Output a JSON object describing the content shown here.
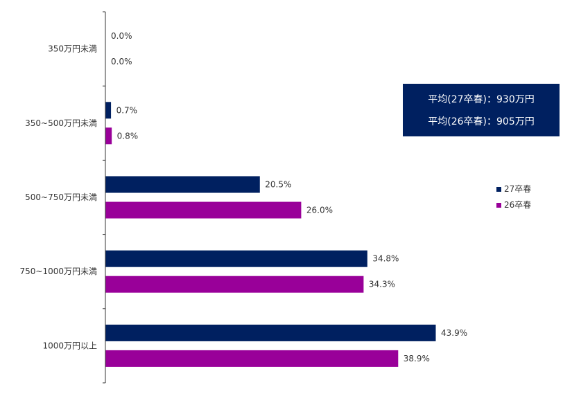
{
  "chart_data": {
    "type": "bar",
    "orientation": "horizontal",
    "categories": [
      "350万円未満",
      "350~500万円未満",
      "500~750万円未満",
      "750~1000万円未満",
      "1000万円以上"
    ],
    "series": [
      {
        "name": "27卒春",
        "color": "#002060",
        "values": [
          0.0,
          0.7,
          20.5,
          34.8,
          43.9
        ],
        "labels": [
          "0.0%",
          "0.7%",
          "20.5%",
          "34.8%",
          "43.9%"
        ]
      },
      {
        "name": "26卒春",
        "color": "#990099",
        "values": [
          0.0,
          0.8,
          26.0,
          34.3,
          38.9
        ],
        "labels": [
          "0.0%",
          "0.8%",
          "26.0%",
          "34.3%",
          "38.9%"
        ]
      }
    ],
    "xlim": [
      0,
      50
    ],
    "grid": false,
    "legend_position": "right"
  },
  "averages": {
    "line1": "平均(27卒春)：930万円",
    "line2": "平均(26卒春)：905万円"
  }
}
